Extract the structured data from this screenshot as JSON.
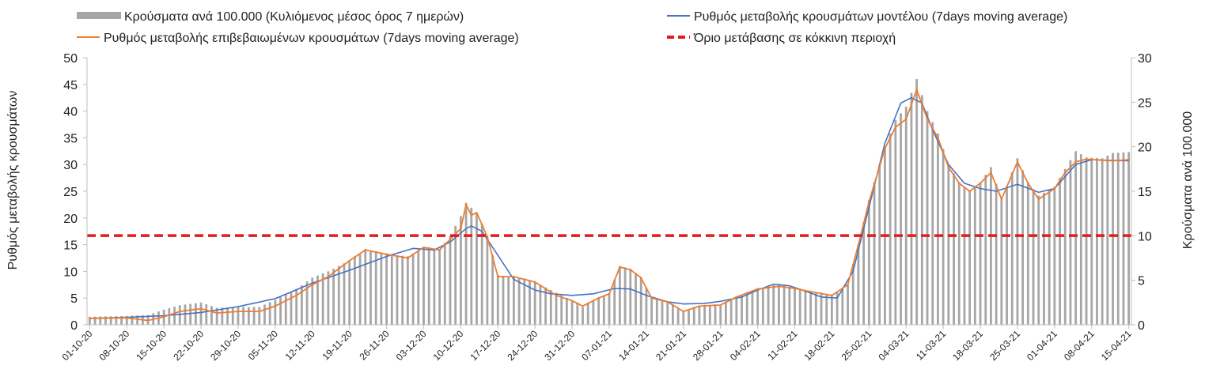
{
  "chart_data": {
    "type": "bar+line",
    "title": "",
    "ylabel_left": "Ρυθμός μεταβολής κρουσμάτων",
    "ylabel_right": "Κρούσματα ανά 100.000",
    "ylim_left": [
      0,
      50
    ],
    "ylim_right": [
      0,
      30
    ],
    "yticks_left": [
      0,
      5,
      10,
      15,
      20,
      25,
      30,
      35,
      40,
      45,
      50
    ],
    "yticks_right": [
      0,
      5,
      10,
      15,
      20,
      25,
      30
    ],
    "x_start": "01-10-20",
    "x_end": "15-04-21",
    "x_tick_labels": [
      "01-10-20",
      "08-10-20",
      "15-10-20",
      "22-10-20",
      "29-10-20",
      "05-11-20",
      "12-11-20",
      "19-11-20",
      "26-11-20",
      "03-12-20",
      "10-12-20",
      "17-12-20",
      "24-12-20",
      "31-12-20",
      "07-01-21",
      "14-01-21",
      "21-01-21",
      "28-01-21",
      "04-02-21",
      "11-02-21",
      "18-02-21",
      "25-02-21",
      "04-03-21",
      "11-03-21",
      "18-03-21",
      "25-03-21",
      "01-04-21",
      "08-04-21",
      "15-04-21"
    ],
    "legend_placement": "top",
    "threshold": 16.7,
    "series": [
      {
        "name": "Κρούσματα ανά 100.000 (Κυλιόμενος μέσος όρος 7 ημερών)",
        "kind": "bar",
        "axis": "right",
        "color": "#a6a6a6",
        "keyframes": [
          [
            "01-10-20",
            0.9
          ],
          [
            "08-10-20",
            1.0
          ],
          [
            "12-10-20",
            1.1
          ],
          [
            "15-10-20",
            1.7
          ],
          [
            "18-10-20",
            2.2
          ],
          [
            "22-10-20",
            2.5
          ],
          [
            "25-10-20",
            1.9
          ],
          [
            "29-10-20",
            2.0
          ],
          [
            "02-11-20",
            2.0
          ],
          [
            "05-11-20",
            2.8
          ],
          [
            "09-11-20",
            4.0
          ],
          [
            "12-11-20",
            5.3
          ],
          [
            "15-11-20",
            6.0
          ],
          [
            "19-11-20",
            7.2
          ],
          [
            "22-11-20",
            8.3
          ],
          [
            "26-11-20",
            7.9
          ],
          [
            "30-11-20",
            7.7
          ],
          [
            "03-12-20",
            8.6
          ],
          [
            "06-12-20",
            8.4
          ],
          [
            "08-12-20",
            10.0
          ],
          [
            "10-12-20",
            12.2
          ],
          [
            "11-12-20",
            13.7
          ],
          [
            "13-12-20",
            12.6
          ],
          [
            "15-12-20",
            10.0
          ],
          [
            "17-12-20",
            5.6
          ],
          [
            "20-12-20",
            5.3
          ],
          [
            "24-12-20",
            4.8
          ],
          [
            "28-12-20",
            3.6
          ],
          [
            "31-12-20",
            2.7
          ],
          [
            "02-01-21",
            2.0
          ],
          [
            "05-01-21",
            3.0
          ],
          [
            "07-01-21",
            3.5
          ],
          [
            "09-01-21",
            6.6
          ],
          [
            "11-01-21",
            6.3
          ],
          [
            "13-01-21",
            5.3
          ],
          [
            "15-01-21",
            3.0
          ],
          [
            "18-01-21",
            2.6
          ],
          [
            "21-01-21",
            1.5
          ],
          [
            "24-01-21",
            2.1
          ],
          [
            "28-01-21",
            2.2
          ],
          [
            "31-01-21",
            3.1
          ],
          [
            "04-02-21",
            4.0
          ],
          [
            "08-02-21",
            4.6
          ],
          [
            "11-02-21",
            4.1
          ],
          [
            "14-02-21",
            3.7
          ],
          [
            "18-02-21",
            3.3
          ],
          [
            "21-02-21",
            4.5
          ],
          [
            "23-02-21",
            9.0
          ],
          [
            "25-02-21",
            14.0
          ],
          [
            "28-02-21",
            20.0
          ],
          [
            "02-03-21",
            23.0
          ],
          [
            "04-03-21",
            24.5
          ],
          [
            "06-03-21",
            27.6
          ],
          [
            "08-03-21",
            24.0
          ],
          [
            "10-03-21",
            21.5
          ],
          [
            "12-03-21",
            18.0
          ],
          [
            "14-03-21",
            16.0
          ],
          [
            "16-03-21",
            15.0
          ],
          [
            "18-03-21",
            16.0
          ],
          [
            "20-03-21",
            17.7
          ],
          [
            "22-03-21",
            14.0
          ],
          [
            "25-03-21",
            18.7
          ],
          [
            "27-03-21",
            16.0
          ],
          [
            "29-03-21",
            14.5
          ],
          [
            "01-04-21",
            15.5
          ],
          [
            "03-04-21",
            17.5
          ],
          [
            "05-04-21",
            19.5
          ],
          [
            "07-04-21",
            18.8
          ],
          [
            "10-04-21",
            18.7
          ],
          [
            "12-04-21",
            19.3
          ],
          [
            "15-04-21",
            19.4
          ]
        ]
      },
      {
        "name": "Ρυθμός μεταβολής κρουσμάτων μοντέλου (7days moving average)",
        "kind": "line",
        "axis": "left",
        "color": "#4472c4",
        "keyframes": [
          [
            "01-10-20",
            1.2
          ],
          [
            "08-10-20",
            1.4
          ],
          [
            "15-10-20",
            1.7
          ],
          [
            "22-10-20",
            2.3
          ],
          [
            "29-10-20",
            3.4
          ],
          [
            "05-11-20",
            4.9
          ],
          [
            "12-11-20",
            7.8
          ],
          [
            "19-11-20",
            10.2
          ],
          [
            "26-11-20",
            12.8
          ],
          [
            "01-12-20",
            14.3
          ],
          [
            "05-12-20",
            14.0
          ],
          [
            "08-12-20",
            15.5
          ],
          [
            "11-12-20",
            18.0
          ],
          [
            "12-12-20",
            18.5
          ],
          [
            "14-12-20",
            17.5
          ],
          [
            "17-12-20",
            13.0
          ],
          [
            "20-12-20",
            8.5
          ],
          [
            "24-12-20",
            6.5
          ],
          [
            "27-12-20",
            5.8
          ],
          [
            "31-12-20",
            5.5
          ],
          [
            "04-01-21",
            5.8
          ],
          [
            "08-01-21",
            6.8
          ],
          [
            "11-01-21",
            6.7
          ],
          [
            "14-01-21",
            5.5
          ],
          [
            "18-01-21",
            4.3
          ],
          [
            "21-01-21",
            3.9
          ],
          [
            "25-01-21",
            4.0
          ],
          [
            "28-01-21",
            4.4
          ],
          [
            "01-02-21",
            5.2
          ],
          [
            "04-02-21",
            6.5
          ],
          [
            "07-02-21",
            7.6
          ],
          [
            "10-02-21",
            7.3
          ],
          [
            "13-02-21",
            6.3
          ],
          [
            "16-02-21",
            5.2
          ],
          [
            "19-02-21",
            5.0
          ],
          [
            "22-02-21",
            10.0
          ],
          [
            "25-02-21",
            22.0
          ],
          [
            "28-02-21",
            34.0
          ],
          [
            "03-03-21",
            41.5
          ],
          [
            "05-03-21",
            42.5
          ],
          [
            "07-03-21",
            41.5
          ],
          [
            "09-03-21",
            36.5
          ],
          [
            "12-03-21",
            30.0
          ],
          [
            "15-03-21",
            26.5
          ],
          [
            "18-03-21",
            25.5
          ],
          [
            "21-03-21",
            25.0
          ],
          [
            "25-03-21",
            26.3
          ],
          [
            "29-03-21",
            24.8
          ],
          [
            "01-04-21",
            25.5
          ],
          [
            "05-04-21",
            30.0
          ],
          [
            "08-04-21",
            30.9
          ],
          [
            "11-04-21",
            30.8
          ],
          [
            "15-04-21",
            30.7
          ]
        ]
      },
      {
        "name": "Ρυθμός μεταβολής επιβεβαιωμένων κρουσμάτων (7days moving average)",
        "kind": "line",
        "axis": "left",
        "color": "#ed7d31",
        "keyframes": [
          [
            "01-10-20",
            1.2
          ],
          [
            "08-10-20",
            1.3
          ],
          [
            "12-10-20",
            0.8
          ],
          [
            "15-10-20",
            1.5
          ],
          [
            "18-10-20",
            2.5
          ],
          [
            "22-10-20",
            3.0
          ],
          [
            "25-10-20",
            2.2
          ],
          [
            "29-10-20",
            2.5
          ],
          [
            "02-11-20",
            2.5
          ],
          [
            "05-11-20",
            3.5
          ],
          [
            "09-11-20",
            5.5
          ],
          [
            "12-11-20",
            7.5
          ],
          [
            "15-11-20",
            9.0
          ],
          [
            "19-11-20",
            12.0
          ],
          [
            "22-11-20",
            14.0
          ],
          [
            "26-11-20",
            13.2
          ],
          [
            "30-11-20",
            12.5
          ],
          [
            "03-12-20",
            14.5
          ],
          [
            "06-12-20",
            14.0
          ],
          [
            "09-12-20",
            17.0
          ],
          [
            "10-12-20",
            18.0
          ],
          [
            "11-12-20",
            22.5
          ],
          [
            "12-12-20",
            20.5
          ],
          [
            "13-12-20",
            21.0
          ],
          [
            "15-12-20",
            16.5
          ],
          [
            "17-12-20",
            9.0
          ],
          [
            "20-12-20",
            9.0
          ],
          [
            "24-12-20",
            8.0
          ],
          [
            "28-12-20",
            5.5
          ],
          [
            "31-12-20",
            4.5
          ],
          [
            "02-01-21",
            3.5
          ],
          [
            "05-01-21",
            5.0
          ],
          [
            "07-01-21",
            5.8
          ],
          [
            "09-01-21",
            10.8
          ],
          [
            "11-01-21",
            10.3
          ],
          [
            "13-01-21",
            8.8
          ],
          [
            "15-01-21",
            5.0
          ],
          [
            "18-01-21",
            4.3
          ],
          [
            "21-01-21",
            2.5
          ],
          [
            "24-01-21",
            3.5
          ],
          [
            "28-01-21",
            3.7
          ],
          [
            "31-01-21",
            5.2
          ],
          [
            "04-02-21",
            6.7
          ],
          [
            "08-02-21",
            7.2
          ],
          [
            "11-02-21",
            6.8
          ],
          [
            "14-02-21",
            6.2
          ],
          [
            "18-02-21",
            5.5
          ],
          [
            "21-02-21",
            7.5
          ],
          [
            "23-02-21",
            15.0
          ],
          [
            "25-02-21",
            23.0
          ],
          [
            "28-02-21",
            33.0
          ],
          [
            "02-03-21",
            37.0
          ],
          [
            "04-03-21",
            38.5
          ],
          [
            "06-03-21",
            44.0
          ],
          [
            "08-03-21",
            38.5
          ],
          [
            "10-03-21",
            35.0
          ],
          [
            "12-03-21",
            29.5
          ],
          [
            "14-03-21",
            26.5
          ],
          [
            "16-03-21",
            25.0
          ],
          [
            "18-03-21",
            26.5
          ],
          [
            "20-03-21",
            28.5
          ],
          [
            "22-03-21",
            23.5
          ],
          [
            "25-03-21",
            30.5
          ],
          [
            "27-03-21",
            26.5
          ],
          [
            "29-03-21",
            23.5
          ],
          [
            "01-04-21",
            25.5
          ],
          [
            "03-04-21",
            28.5
          ],
          [
            "05-04-21",
            30.5
          ],
          [
            "07-04-21",
            31.0
          ],
          [
            "10-04-21",
            30.8
          ],
          [
            "12-04-21",
            30.7
          ],
          [
            "15-04-21",
            30.9
          ]
        ]
      },
      {
        "name": "Όριο μετάβασης σε κόκκινη περιοχή",
        "kind": "threshold",
        "axis": "left",
        "color": "#e31a1c",
        "value": 16.7
      }
    ]
  }
}
